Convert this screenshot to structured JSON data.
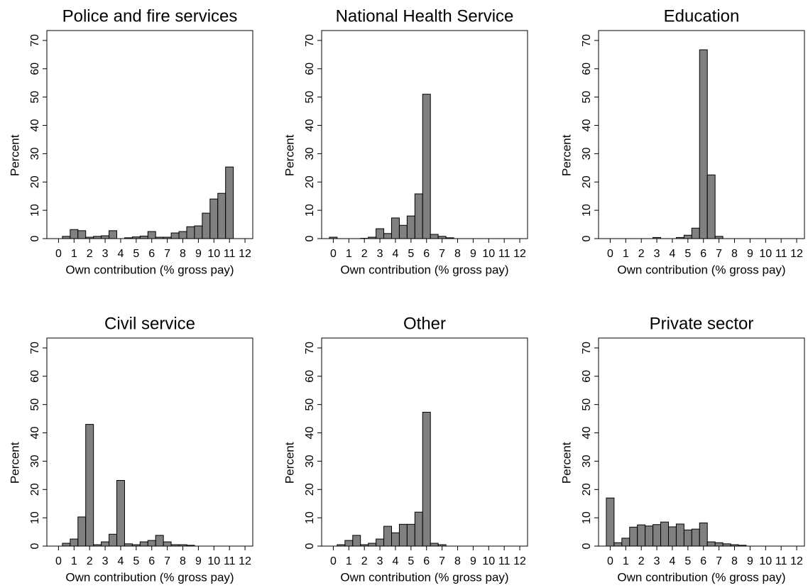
{
  "chart_data": [
    {
      "type": "histogram",
      "title": "Police and fire services",
      "x_label": "Own contribution (% gross pay)",
      "y_label": "Percent",
      "color": "#808080",
      "bins": [
        -0.25,
        0.25,
        0.75,
        1.25,
        1.75,
        2.25,
        2.75,
        3.25,
        3.75,
        4.25,
        4.75,
        5.25,
        5.75,
        6.25,
        6.75,
        7.25,
        7.75,
        8.25,
        8.75,
        9.25,
        9.75,
        10.25,
        10.75,
        11.25,
        11.75,
        12.25
      ],
      "values": [
        0,
        0.8,
        3.2,
        2.8,
        0.5,
        0.8,
        1.0,
        2.8,
        0,
        0.3,
        0.6,
        0.9,
        2.5,
        0.5,
        0.5,
        2.0,
        2.5,
        4.2,
        4.5,
        9,
        14,
        16,
        25.3,
        0,
        0
      ],
      "xlim": [
        -0.75,
        12.5
      ],
      "ylim": [
        0,
        73.5
      ],
      "xticks": [
        0,
        1,
        2,
        3,
        4,
        5,
        6,
        7,
        8,
        9,
        10,
        11,
        12
      ],
      "yticks": [
        0,
        10,
        20,
        30,
        40,
        50,
        60,
        70
      ]
    },
    {
      "type": "histogram",
      "title": "National Health Service",
      "x_label": "Own contribution (% gross pay)",
      "y_label": "Percent",
      "color": "#808080",
      "bins": [
        -0.25,
        0.25,
        0.75,
        1.25,
        1.75,
        2.25,
        2.75,
        3.25,
        3.75,
        4.25,
        4.75,
        5.25,
        5.75,
        6.25,
        6.75,
        7.25,
        7.75,
        8.25,
        8.75,
        9.25,
        9.75,
        10.25,
        10.75,
        11.25,
        11.75,
        12.25
      ],
      "values": [
        0.5,
        0,
        0,
        0,
        0.1,
        0.5,
        3.5,
        1.8,
        7.3,
        4.7,
        8,
        15.8,
        51,
        1.5,
        0.8,
        0.3,
        0,
        0,
        0,
        0,
        0,
        0,
        0,
        0,
        0
      ],
      "xlim": [
        -0.75,
        12.5
      ],
      "ylim": [
        0,
        73.5
      ],
      "xticks": [
        0,
        1,
        2,
        3,
        4,
        5,
        6,
        7,
        8,
        9,
        10,
        11,
        12
      ],
      "yticks": [
        0,
        10,
        20,
        30,
        40,
        50,
        60,
        70
      ]
    },
    {
      "type": "histogram",
      "title": "Education",
      "x_label": "Own contribution (% gross pay)",
      "y_label": "Percent",
      "color": "#808080",
      "bins": [
        -0.25,
        0.25,
        0.75,
        1.25,
        1.75,
        2.25,
        2.75,
        3.25,
        3.75,
        4.25,
        4.75,
        5.25,
        5.75,
        6.25,
        6.75,
        7.25,
        7.75,
        8.25,
        8.75,
        9.25,
        9.75,
        10.25,
        10.75,
        11.25,
        11.75,
        12.25
      ],
      "values": [
        0,
        0,
        0,
        0,
        0,
        0,
        0.4,
        0,
        0,
        0.4,
        1.2,
        3.7,
        66.7,
        22.5,
        0.8,
        0,
        0,
        0,
        0,
        0,
        0,
        0,
        0,
        0,
        0
      ],
      "xlim": [
        -0.75,
        12.5
      ],
      "ylim": [
        0,
        73.5
      ],
      "xticks": [
        0,
        1,
        2,
        3,
        4,
        5,
        6,
        7,
        8,
        9,
        10,
        11,
        12
      ],
      "yticks": [
        0,
        10,
        20,
        30,
        40,
        50,
        60,
        70
      ]
    },
    {
      "type": "histogram",
      "title": "Civil service",
      "x_label": "Own contribution (% gross pay)",
      "y_label": "Percent",
      "color": "#808080",
      "bins": [
        -0.25,
        0.25,
        0.75,
        1.25,
        1.75,
        2.25,
        2.75,
        3.25,
        3.75,
        4.25,
        4.75,
        5.25,
        5.75,
        6.25,
        6.75,
        7.25,
        7.75,
        8.25,
        8.75,
        9.25,
        9.75,
        10.25,
        10.75,
        11.25,
        11.75,
        12.25
      ],
      "values": [
        0,
        1,
        2.5,
        10.3,
        43,
        0.5,
        1.5,
        4.2,
        23.2,
        0.8,
        0.5,
        1.5,
        2,
        3.8,
        1.5,
        0.5,
        0.5,
        0.3,
        0,
        0,
        0,
        0,
        0,
        0,
        0
      ],
      "xlim": [
        -0.75,
        12.5
      ],
      "ylim": [
        0,
        73.5
      ],
      "xticks": [
        0,
        1,
        2,
        3,
        4,
        5,
        6,
        7,
        8,
        9,
        10,
        11,
        12
      ],
      "yticks": [
        0,
        10,
        20,
        30,
        40,
        50,
        60,
        70
      ]
    },
    {
      "type": "histogram",
      "title": "Other",
      "x_label": "Own contribution (% gross pay)",
      "y_label": "Percent",
      "color": "#808080",
      "bins": [
        -0.25,
        0.25,
        0.75,
        1.25,
        1.75,
        2.25,
        2.75,
        3.25,
        3.75,
        4.25,
        4.75,
        5.25,
        5.75,
        6.25,
        6.75,
        7.25,
        7.75,
        8.25,
        8.75,
        9.25,
        9.75,
        10.25,
        10.75,
        11.25,
        11.75,
        12.25
      ],
      "values": [
        0,
        0.5,
        2,
        3.8,
        0.5,
        1,
        2.5,
        7,
        4.7,
        7.7,
        7.7,
        12,
        47.3,
        1,
        0.5,
        0,
        0,
        0,
        0,
        0,
        0,
        0,
        0,
        0,
        0
      ],
      "xlim": [
        -0.75,
        12.5
      ],
      "ylim": [
        0,
        73.5
      ],
      "xticks": [
        0,
        1,
        2,
        3,
        4,
        5,
        6,
        7,
        8,
        9,
        10,
        11,
        12
      ],
      "yticks": [
        0,
        10,
        20,
        30,
        40,
        50,
        60,
        70
      ]
    },
    {
      "type": "histogram",
      "title": "Private sector",
      "x_label": "Own contribution (% gross pay)",
      "y_label": "Percent",
      "color": "#808080",
      "bins": [
        -0.25,
        0.25,
        0.75,
        1.25,
        1.75,
        2.25,
        2.75,
        3.25,
        3.75,
        4.25,
        4.75,
        5.25,
        5.75,
        6.25,
        6.75,
        7.25,
        7.75,
        8.25,
        8.75,
        9.25,
        9.75,
        10.25,
        10.75,
        11.25,
        11.75,
        12.25
      ],
      "values": [
        17,
        1.2,
        2.8,
        6.7,
        7.5,
        7.1,
        7.6,
        8.5,
        6.8,
        7.8,
        5.7,
        6,
        8.2,
        1.5,
        1.2,
        0.8,
        0.5,
        0.3,
        0,
        0,
        0,
        0,
        0,
        0,
        0
      ],
      "xlim": [
        -0.75,
        12.5
      ],
      "ylim": [
        0,
        73.5
      ],
      "xticks": [
        0,
        1,
        2,
        3,
        4,
        5,
        6,
        7,
        8,
        9,
        10,
        11,
        12
      ],
      "yticks": [
        0,
        10,
        20,
        30,
        40,
        50,
        60,
        70
      ]
    }
  ]
}
